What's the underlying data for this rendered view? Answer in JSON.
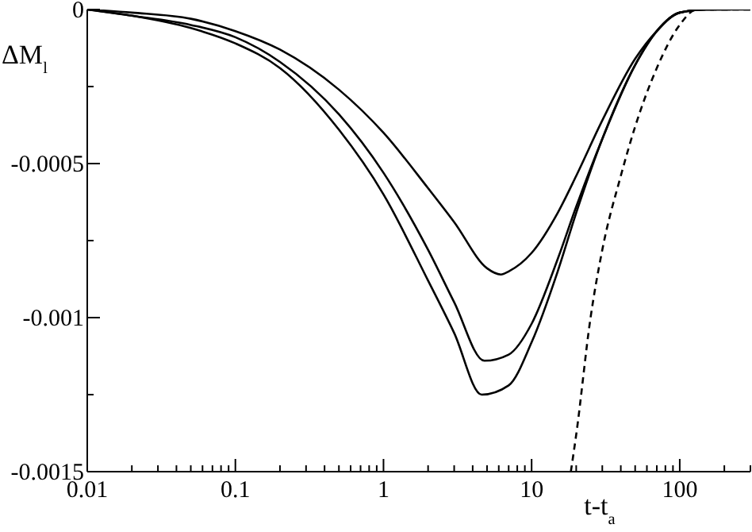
{
  "chart_data": {
    "type": "line",
    "xlabel": "t-t$_{a}$",
    "ylabel": "ΔM$_{l}$",
    "log": "x",
    "marker": "none",
    "xlim": [
      0.01,
      300
    ],
    "ylim": [
      -0.0015,
      0
    ],
    "xticks": [
      "0.01",
      {
        "value": 0.02,
        "label": null
      },
      {
        "value": 0.03,
        "label": null
      },
      {
        "value": 0.04,
        "label": null
      },
      {
        "value": 0.05,
        "label": null
      },
      {
        "value": 0.06,
        "label": null
      },
      {
        "value": 0.07,
        "label": null
      },
      {
        "value": 0.08,
        "label": null
      },
      {
        "value": 0.09,
        "label": null
      },
      0.1,
      {
        "value": 0.2,
        "label": null
      },
      {
        "value": 0.3,
        "label": null
      },
      {
        "value": 0.4,
        "label": null
      },
      {
        "value": 0.5,
        "label": null
      },
      {
        "value": 0.6,
        "label": null
      },
      {
        "value": 0.7,
        "label": null
      },
      {
        "value": 0.8,
        "label": null
      },
      {
        "value": 0.9,
        "label": null
      },
      1,
      {
        "value": 2,
        "label": null
      },
      {
        "value": 3,
        "label": null
      },
      {
        "value": 4,
        "label": null
      },
      {
        "value": 5,
        "label": null
      },
      {
        "value": 6,
        "label": null
      },
      {
        "value": 7,
        "label": null
      },
      {
        "value": 8,
        "label": null
      },
      {
        "value": 9,
        "label": null
      },
      10,
      {
        "value": 20,
        "label": null
      },
      {
        "value": 30,
        "label": null
      },
      {
        "value": 40,
        "label": null
      },
      {
        "value": 50,
        "label": null
      },
      {
        "value": 60,
        "label": null
      },
      {
        "value": 70,
        "label": null
      },
      {
        "value": 80,
        "label": null
      },
      {
        "value": 90,
        "label": null
      },
      100,
      {
        "value": 200,
        "label": null
      },
      {
        "value": 300,
        "label": null
      }
    ],
    "yticks": [
      {
        "value": -0.0015,
        "label": "-0.0015"
      },
      {
        "value": -0.00125,
        "label": null
      },
      {
        "value": -0.001,
        "label": "-0.001"
      },
      {
        "value": -0.00075,
        "label": null
      },
      {
        "value": -0.0005,
        "label": "-0.0005"
      },
      {
        "value": -0.00025,
        "label": null
      },
      0
    ],
    "series": [
      {
        "color": "#000000",
        "line_style": "solid",
        "x": [
          0.01,
          0.02,
          0.05,
          0.1,
          0.2,
          0.5,
          1,
          2,
          3,
          5,
          6.2,
          7,
          10,
          15,
          20,
          30,
          50,
          70,
          100,
          150,
          300
        ],
        "values": [
          0,
          -1e-05,
          -3e-05,
          -7e-05,
          -0.00013,
          -0.00026,
          -0.0004,
          -0.00058,
          -0.00069,
          -0.00084,
          -0.00086,
          -0.00085,
          -0.00079,
          -0.00066,
          -0.00054,
          -0.00036,
          -0.00016,
          -7e-05,
          -1e-05,
          0,
          0
        ]
      },
      {
        "color": "#000000",
        "line_style": "solid",
        "x": [
          0.01,
          0.02,
          0.05,
          0.1,
          0.2,
          0.5,
          1,
          2,
          3,
          4.8,
          7,
          10,
          15,
          20,
          30,
          50,
          70,
          100,
          150,
          170
        ],
        "values": [
          0,
          -2e-05,
          -5e-05,
          -9e-05,
          -0.00017,
          -0.00034,
          -0.00053,
          -0.00078,
          -0.00095,
          -0.00114,
          -0.00112,
          -0.00102,
          -0.00081,
          -0.00064,
          -0.00042,
          -0.00018,
          -7e-05,
          -1e-05,
          0,
          0
        ]
      },
      {
        "color": "#000000",
        "line_style": "solid",
        "x": [
          0.01,
          0.02,
          0.05,
          0.1,
          0.2,
          0.5,
          1,
          2,
          3,
          4.6,
          7,
          10,
          15,
          20,
          30,
          50,
          70,
          100,
          150,
          220
        ],
        "values": [
          0,
          -2e-05,
          -6e-05,
          -0.00011,
          -0.00019,
          -0.00039,
          -0.0006,
          -0.00088,
          -0.00105,
          -0.00125,
          -0.00122,
          -0.00108,
          -0.00085,
          -0.00066,
          -0.00042,
          -0.00018,
          -7e-05,
          -1e-05,
          0,
          0
        ]
      },
      {
        "color": "#000000",
        "line_style": "dashed",
        "x": [
          18.4,
          20,
          25,
          30,
          40,
          50,
          70,
          100,
          130,
          200,
          300
        ],
        "values": [
          -0.0015,
          -0.00138,
          -0.001,
          -0.00078,
          -0.00054,
          -0.00038,
          -0.00019,
          -5e-05,
          0,
          0,
          0
        ]
      }
    ]
  }
}
